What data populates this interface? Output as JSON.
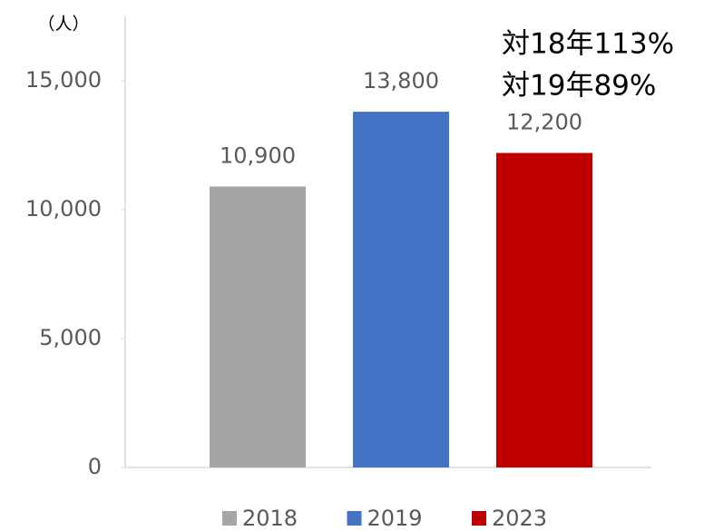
{
  "chart_data": {
    "type": "bar",
    "unit_label": "（人）",
    "annotations": [
      "対18年113%",
      "対19年89%"
    ],
    "categories": [
      null
    ],
    "series": [
      {
        "name": "2018",
        "color": "#a5a5a5",
        "values": [
          10900
        ],
        "value_labels": [
          "10,900"
        ]
      },
      {
        "name": "2019",
        "color": "#4472c4",
        "values": [
          13800
        ],
        "value_labels": [
          "13,800"
        ]
      },
      {
        "name": "2023",
        "color": "#c00000",
        "values": [
          12200
        ],
        "value_labels": [
          "12,200"
        ]
      }
    ],
    "ylim": [
      0,
      17500
    ],
    "yticks": [
      0,
      {
        "value": 5000,
        "label": "5,000"
      },
      {
        "value": 10000,
        "label": "10,000"
      },
      {
        "value": 15000,
        "label": "15,000"
      }
    ],
    "legend": "bottom"
  }
}
